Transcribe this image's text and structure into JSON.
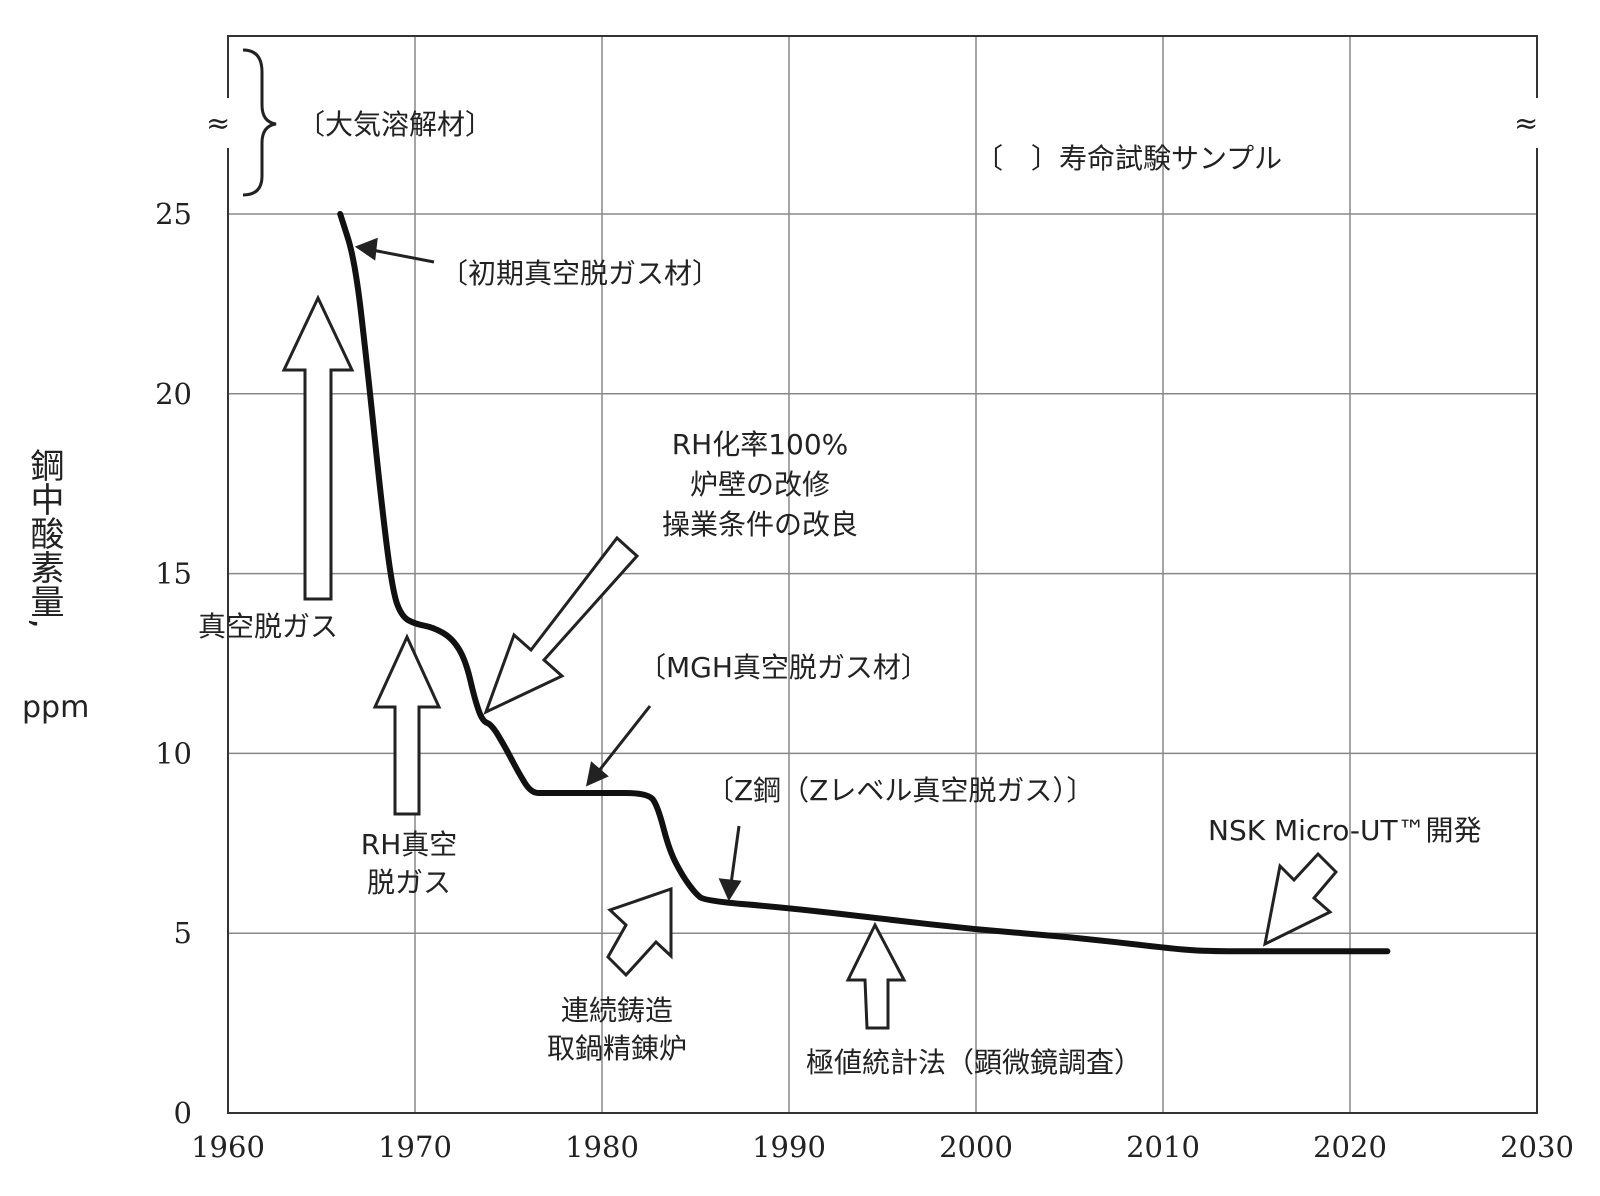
{
  "chart_data": {
    "type": "line",
    "ylabel": "鋼中酸素量,",
    "yunit": "ppm",
    "xlim": [
      1960,
      2030
    ],
    "ylim": [
      0,
      25
    ],
    "xticks": [
      "1960",
      "1970",
      "1980",
      "1990",
      "2000",
      "2010",
      "2020",
      "2030"
    ],
    "yticks": [
      "0",
      "5",
      "10",
      "15",
      "20",
      "25"
    ],
    "grid": true,
    "axis_break_mark": "≈",
    "series": [
      {
        "x": [
          1966.0,
          1966.8,
          1967.5,
          1968.2,
          1968.8,
          1969.3,
          1970.0,
          1971.0,
          1972.0,
          1972.7,
          1973.2,
          1973.6,
          1974.1,
          1974.8,
          1975.5,
          1976.2,
          1977.0,
          1980.0,
          1982.5,
          1983.0,
          1983.6,
          1984.3,
          1985.0,
          1985.5,
          1990.0,
          1995.0,
          2000.0,
          2005.0,
          2010.0,
          2012.0,
          2015.0,
          2022.0
        ],
        "y": [
          25.0,
          23.7,
          20.5,
          17.0,
          14.5,
          13.8,
          13.6,
          13.5,
          13.2,
          12.6,
          11.5,
          10.9,
          10.8,
          10.2,
          9.5,
          8.9,
          8.9,
          8.9,
          8.9,
          8.5,
          7.3,
          6.6,
          6.1,
          5.9,
          5.7,
          5.4,
          5.1,
          4.9,
          4.6,
          4.5,
          4.5,
          4.5
        ]
      }
    ],
    "annotations": [
      {
        "lines": [
          "〔大気溶解材〕"
        ]
      },
      {
        "lines": [
          "〔　〕寿命試験サンプル"
        ]
      },
      {
        "lines": [
          "〔初期真空脱ガス材〕"
        ]
      },
      {
        "lines": [
          "真空脱ガス"
        ]
      },
      {
        "lines": [
          "RH化率100%",
          "炉壁の改修",
          "操業条件の改良"
        ]
      },
      {
        "lines": [
          "〔MGH真空脱ガス材〕"
        ]
      },
      {
        "lines": [
          "〔Z鋼（Zレベル真空脱ガス）〕"
        ]
      },
      {
        "lines": [
          "NSK Micro-UT™開発"
        ]
      },
      {
        "lines": [
          "RH真空",
          "脱ガス"
        ]
      },
      {
        "lines": [
          "連続鋳造",
          "取鍋精錬炉"
        ]
      },
      {
        "lines": [
          "極値統計法（顕微鏡調査）"
        ]
      }
    ]
  }
}
